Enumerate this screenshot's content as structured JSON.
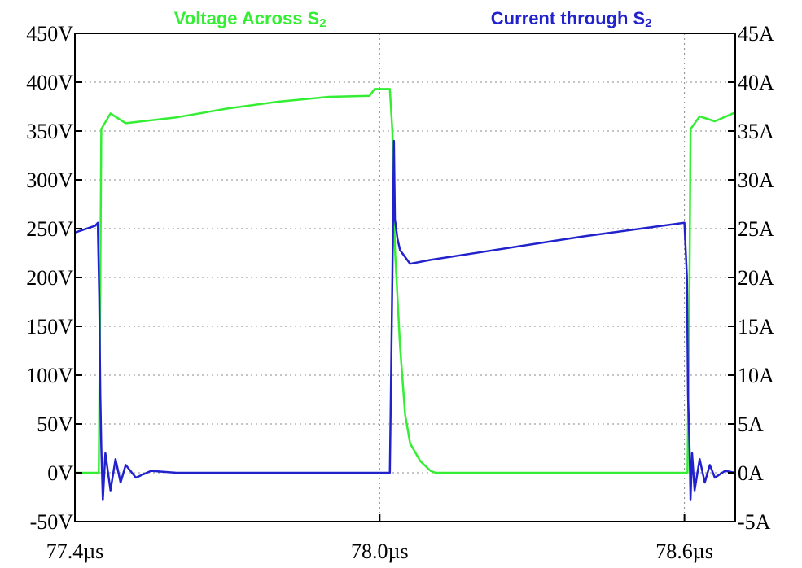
{
  "chart_data": {
    "type": "line",
    "series": [
      {
        "name": "Voltage Across S",
        "name_subscript": "2",
        "color": "#33ee33",
        "axis": "left",
        "x": [
          77.4,
          77.447,
          77.45,
          77.452,
          77.47,
          77.5,
          77.6,
          77.7,
          77.8,
          77.9,
          77.98,
          77.99,
          78.02,
          78.025,
          78.03,
          78.04,
          78.05,
          78.06,
          78.08,
          78.1,
          78.11,
          78.2,
          78.4,
          78.6,
          78.606,
          78.61,
          78.612,
          78.63,
          78.66,
          78.7
        ],
        "y": [
          0,
          0,
          200,
          352,
          368,
          358,
          364,
          373,
          380,
          385,
          386,
          393,
          393,
          350,
          230,
          130,
          60,
          30,
          12,
          2,
          0,
          0,
          0,
          0,
          0,
          200,
          352,
          365,
          360,
          369
        ]
      },
      {
        "name": "Current through S",
        "name_subscript": "2",
        "color": "#2222cc",
        "axis": "right",
        "x": [
          77.4,
          77.44,
          77.445,
          77.448,
          77.45,
          77.452,
          77.455,
          77.46,
          77.47,
          77.48,
          77.49,
          77.5,
          77.52,
          77.55,
          77.6,
          77.7,
          77.8,
          77.9,
          77.99,
          78.0,
          78.02,
          78.025,
          78.028,
          78.03,
          78.035,
          78.04,
          78.06,
          78.1,
          78.2,
          78.4,
          78.6,
          78.605,
          78.607,
          78.61,
          78.612,
          78.615,
          78.62,
          78.63,
          78.64,
          78.65,
          78.66,
          78.68,
          78.7
        ],
        "y": [
          24.6,
          25.3,
          25.6,
          18,
          8,
          2.6,
          -2.8,
          2.0,
          -1.8,
          1.4,
          -1.0,
          0.8,
          -0.5,
          0.2,
          0,
          0,
          0,
          0,
          0,
          0,
          0,
          20,
          34,
          26,
          24,
          22.8,
          21.4,
          21.8,
          22.6,
          24.2,
          25.6,
          20,
          8,
          2.6,
          -2.8,
          2.0,
          -1.8,
          1.4,
          -1.0,
          0.8,
          -0.5,
          0.2,
          0
        ]
      }
    ],
    "x_axis": {
      "range": [
        77.4,
        78.7
      ],
      "ticks": [
        77.4,
        78.0,
        78.6
      ],
      "tick_labels": [
        "77.4µs",
        "78.0µs",
        "78.6µs"
      ],
      "grid": "dotted vertical at 78.0µs"
    },
    "y_axis_left": {
      "range": [
        -50,
        450
      ],
      "ticks": [
        -50,
        0,
        50,
        100,
        150,
        200,
        250,
        300,
        350,
        400,
        450
      ],
      "tick_labels": [
        "-50V",
        "0V",
        "50V",
        "100V",
        "150V",
        "200V",
        "250V",
        "300V",
        "350V",
        "400V",
        "450V"
      ]
    },
    "y_axis_right": {
      "range": [
        -5,
        45
      ],
      "ticks": [
        -5,
        0,
        5,
        10,
        15,
        20,
        25,
        30,
        35,
        40,
        45
      ],
      "tick_labels": [
        "-5A",
        "0A",
        "5A",
        "10A",
        "15A",
        "20A",
        "25A",
        "30A",
        "35A",
        "40A",
        "45A"
      ]
    },
    "grid": true,
    "legend": "top-center"
  }
}
